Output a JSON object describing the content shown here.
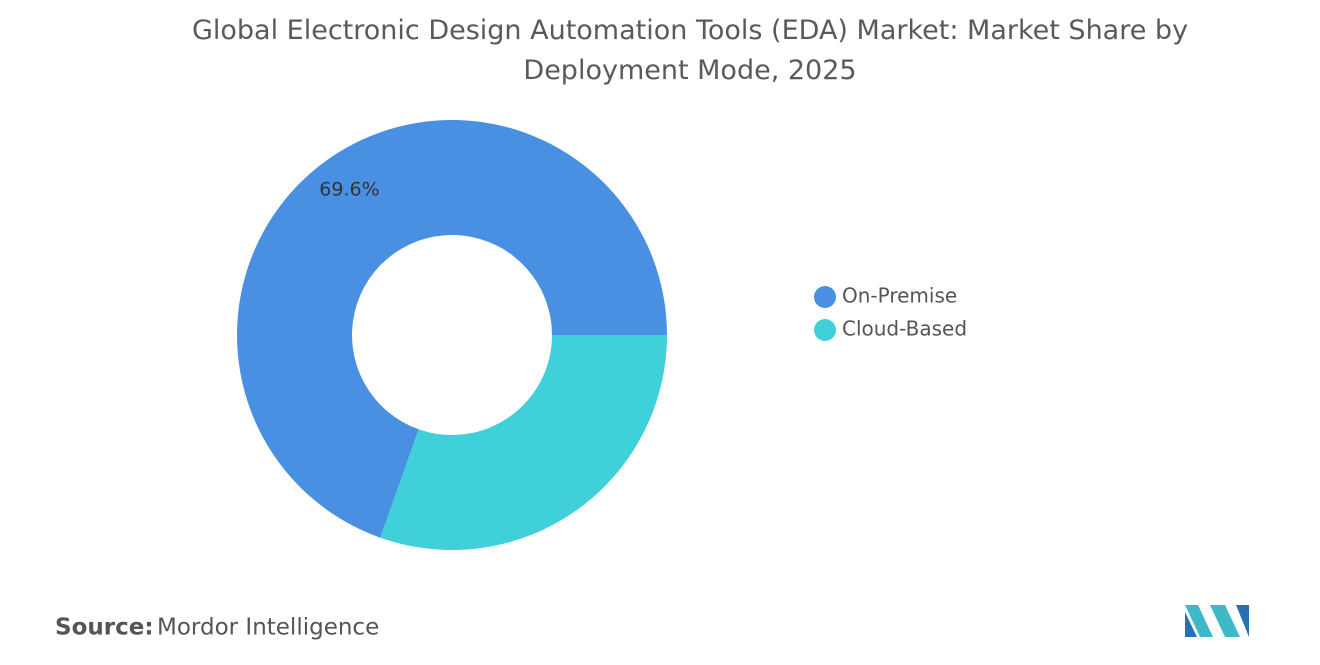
{
  "chart_data": {
    "type": "donut",
    "title": "Global Electronic Design Automation Tools (EDA) Market: Market Share by Deployment Mode, 2025",
    "categories": [
      "On-Premise",
      "Cloud-Based"
    ],
    "values": [
      69.6,
      30.4
    ],
    "value_labels": [
      "69.6%",
      null
    ],
    "colors": [
      "#4a90e2",
      "#40d0da"
    ],
    "legend": "right"
  },
  "source": {
    "label": "Source:",
    "text": "Mordor Intelligence"
  }
}
